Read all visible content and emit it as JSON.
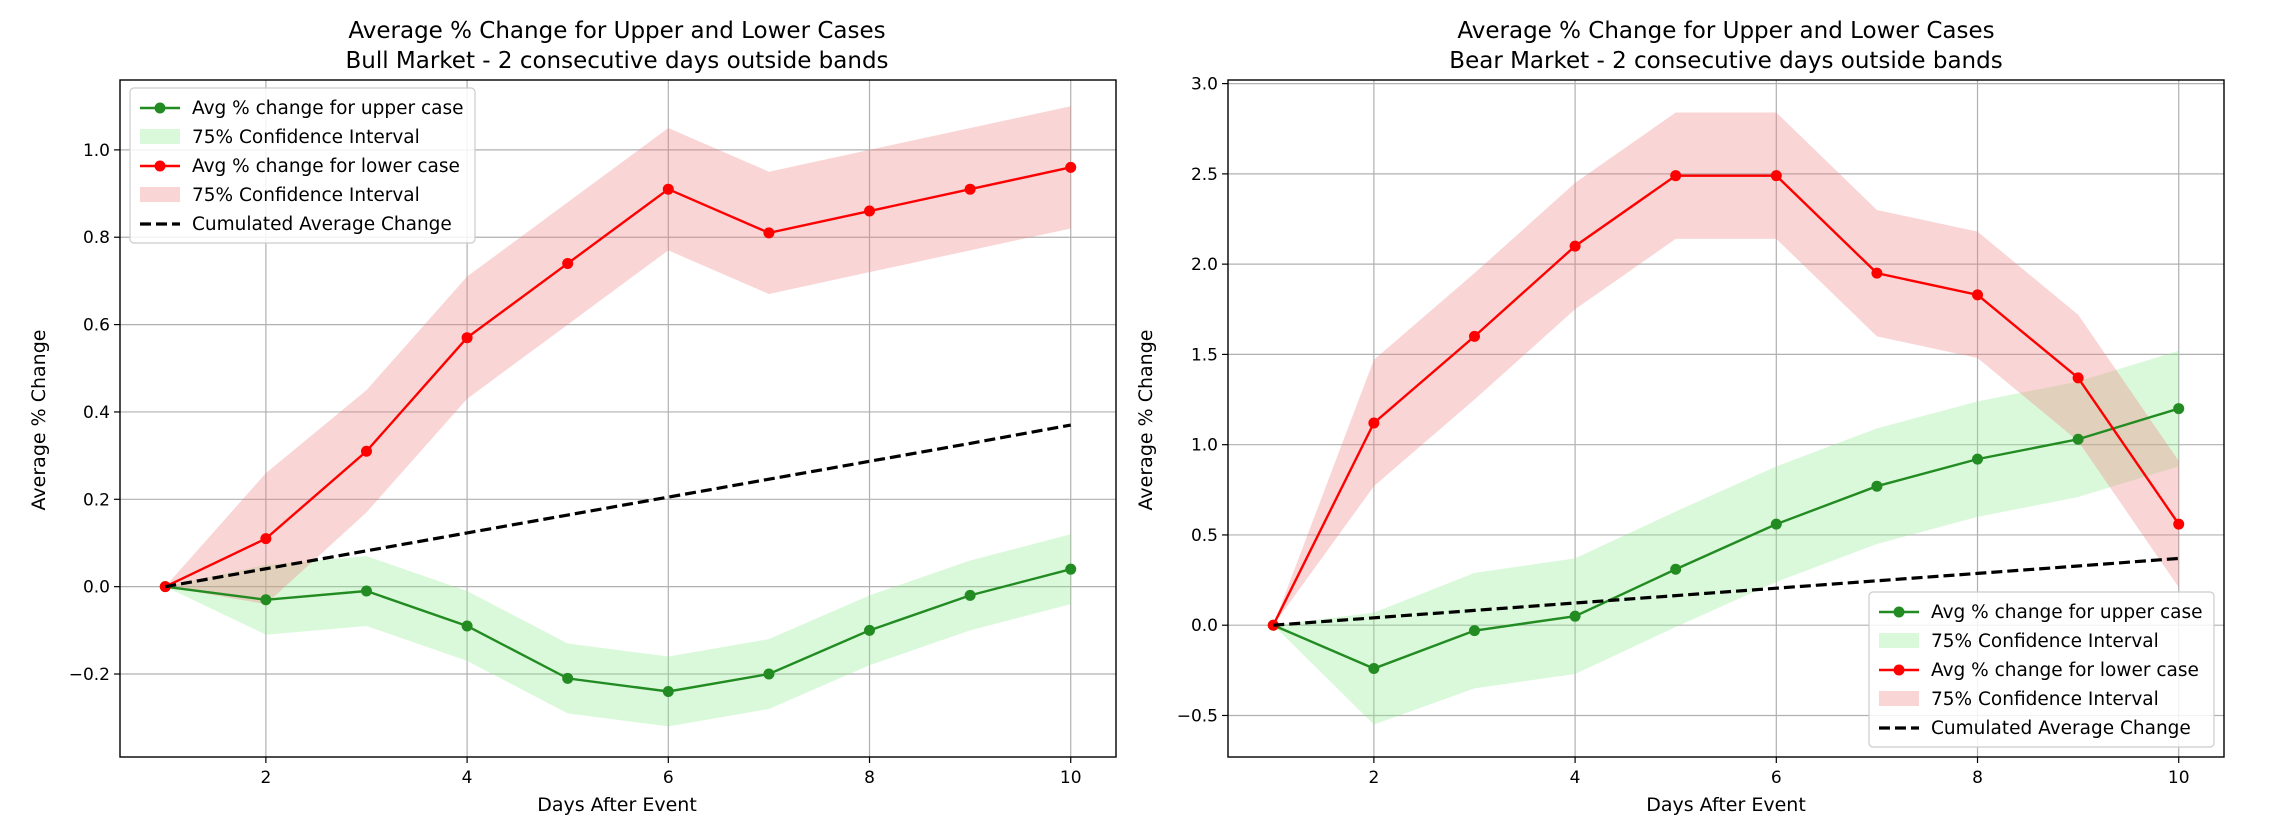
{
  "chart_data": [
    {
      "type": "line",
      "title": "Average % Change for Upper and Lower Cases",
      "subtitle": "Bull Market - 2 consecutive days outside bands",
      "xlabel": "Days After Event",
      "ylabel": "Average % Change",
      "xlim": [
        0.55,
        10.45
      ],
      "ylim": [
        -0.39,
        1.16
      ],
      "xticks": [
        2,
        4,
        6,
        8,
        10
      ],
      "yticks": [
        -0.2,
        0.0,
        0.2,
        0.4,
        0.6,
        0.8,
        1.0
      ],
      "ytick_labels": [
        "−0.2",
        "0.0",
        "0.2",
        "0.4",
        "0.6",
        "0.8",
        "1.0"
      ],
      "grid": true,
      "legend_position": "upper-left",
      "x": [
        1,
        2,
        3,
        4,
        5,
        6,
        7,
        8,
        9,
        10
      ],
      "series": [
        {
          "name": "Avg % change for upper case",
          "color": "#228b22",
          "values": [
            0.0,
            -0.03,
            -0.01,
            -0.09,
            -0.21,
            -0.24,
            -0.2,
            -0.1,
            -0.02,
            0.04
          ],
          "ci_label": "75% Confidence Interval",
          "ci_color": "#90ee90",
          "ci_lower": [
            0.0,
            -0.11,
            -0.09,
            -0.17,
            -0.29,
            -0.32,
            -0.28,
            -0.18,
            -0.1,
            -0.04
          ],
          "ci_upper": [
            0.0,
            0.05,
            0.07,
            -0.01,
            -0.13,
            -0.16,
            -0.12,
            -0.02,
            0.06,
            0.12
          ]
        },
        {
          "name": "Avg % change for lower case",
          "color": "#ff0000",
          "values": [
            0.0,
            0.11,
            0.31,
            0.57,
            0.74,
            0.91,
            0.81,
            0.86,
            0.91,
            0.96
          ],
          "ci_label": "75% Confidence Interval",
          "ci_color": "#f08080",
          "ci_lower": [
            0.0,
            -0.04,
            0.17,
            0.43,
            0.6,
            0.77,
            0.67,
            0.72,
            0.77,
            0.82
          ],
          "ci_upper": [
            0.0,
            0.26,
            0.45,
            0.71,
            0.88,
            1.05,
            0.95,
            1.0,
            1.05,
            1.1
          ]
        },
        {
          "name": "Cumulated Average Change",
          "color": "#000000",
          "dashed": true,
          "values": [
            0.0,
            0.041,
            0.082,
            0.123,
            0.164,
            0.205,
            0.246,
            0.287,
            0.328,
            0.37
          ]
        }
      ]
    },
    {
      "type": "line",
      "title": "Average % Change for Upper and Lower Cases",
      "subtitle": "Bear Market - 2 consecutive days outside bands",
      "xlabel": "Days After Event",
      "ylabel": "Average % Change",
      "xlim": [
        0.55,
        10.45
      ],
      "ylim": [
        -0.73,
        3.02
      ],
      "xticks": [
        2,
        4,
        6,
        8,
        10
      ],
      "yticks": [
        -0.5,
        0.0,
        0.5,
        1.0,
        1.5,
        2.0,
        2.5,
        3.0
      ],
      "ytick_labels": [
        "−0.5",
        "0.0",
        "0.5",
        "1.0",
        "1.5",
        "2.0",
        "2.5",
        "3.0"
      ],
      "grid": true,
      "legend_position": "lower-right",
      "x": [
        1,
        2,
        3,
        4,
        5,
        6,
        7,
        8,
        9,
        10
      ],
      "series": [
        {
          "name": "Avg % change for upper case",
          "color": "#228b22",
          "values": [
            0.0,
            -0.24,
            -0.03,
            0.05,
            0.31,
            0.56,
            0.77,
            0.92,
            1.03,
            1.2
          ],
          "ci_label": "75% Confidence Interval",
          "ci_color": "#90ee90",
          "ci_lower": [
            0.0,
            -0.55,
            -0.35,
            -0.27,
            -0.01,
            0.24,
            0.45,
            0.6,
            0.71,
            0.88
          ],
          "ci_upper": [
            0.0,
            0.07,
            0.29,
            0.37,
            0.63,
            0.88,
            1.09,
            1.24,
            1.35,
            1.52
          ]
        },
        {
          "name": "Avg % change for lower case",
          "color": "#ff0000",
          "values": [
            0.0,
            1.12,
            1.6,
            2.1,
            2.49,
            2.49,
            1.95,
            1.83,
            1.37,
            0.56
          ],
          "ci_label": "75% Confidence Interval",
          "ci_color": "#f08080",
          "ci_lower": [
            0.0,
            0.77,
            1.25,
            1.75,
            2.14,
            2.14,
            1.6,
            1.48,
            1.02,
            0.21
          ],
          "ci_upper": [
            0.0,
            1.47,
            1.95,
            2.45,
            2.84,
            2.84,
            2.3,
            2.18,
            1.72,
            0.91
          ]
        },
        {
          "name": "Cumulated Average Change",
          "color": "#000000",
          "dashed": true,
          "values": [
            0.0,
            0.041,
            0.082,
            0.123,
            0.164,
            0.205,
            0.246,
            0.287,
            0.328,
            0.37
          ]
        }
      ]
    }
  ]
}
